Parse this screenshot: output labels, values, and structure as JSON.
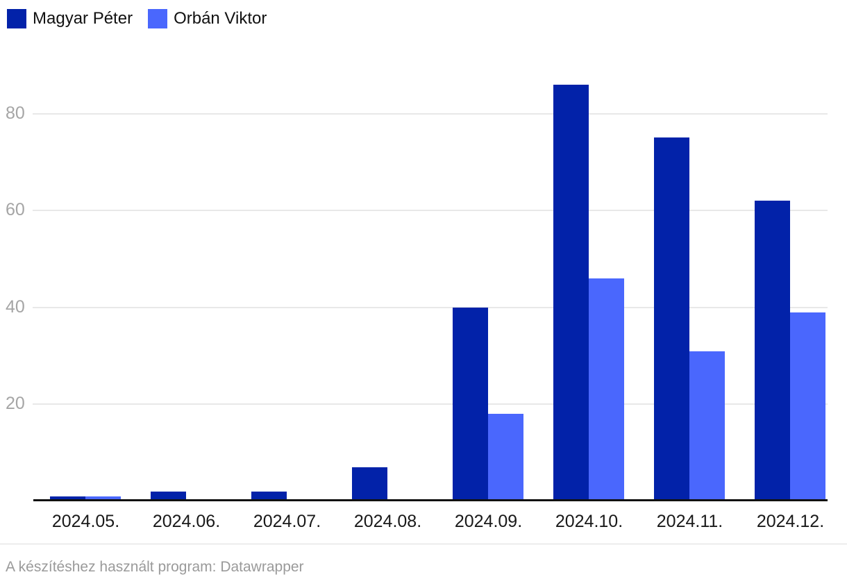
{
  "legend": {
    "items": [
      {
        "label": "Magyar Péter",
        "color": "#0222a9"
      },
      {
        "label": "Orbán Viktor",
        "color": "#4a67fd"
      }
    ]
  },
  "chart_data": {
    "type": "bar",
    "title": "",
    "xlabel": "",
    "ylabel": "",
    "categories": [
      "2024.05.",
      "2024.06.",
      "2024.07.",
      "2024.08.",
      "2024.09.",
      "2024.10.",
      "2024.11.",
      "2024.12."
    ],
    "series": [
      {
        "name": "Magyar Péter",
        "color": "#0222a9",
        "values": [
          1,
          2,
          2,
          7,
          40,
          86,
          75,
          62
        ]
      },
      {
        "name": "Orbán Viktor",
        "color": "#4a67fd",
        "values": [
          1,
          0,
          0,
          0,
          18,
          46,
          31,
          39
        ]
      }
    ],
    "y_ticks": [
      20,
      40,
      60,
      80
    ],
    "ylim": [
      0,
      88
    ],
    "grid": "horizontal",
    "legend_position": "top-left"
  },
  "footer": {
    "attribution": "A készítéshez használt program: Datawrapper"
  }
}
